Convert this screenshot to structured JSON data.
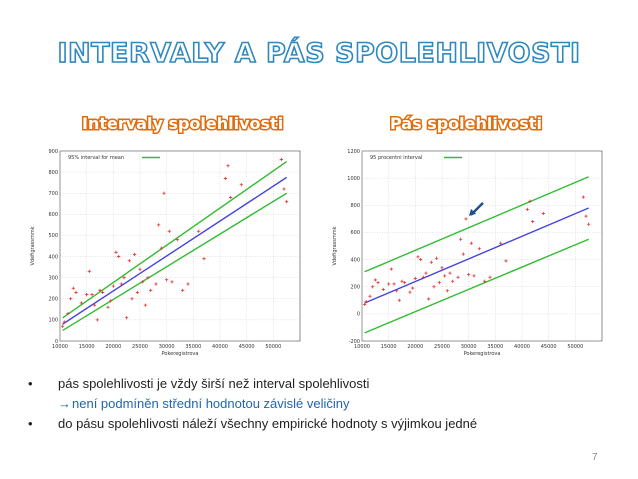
{
  "title": "INTERVALY A PÁS SPOLEHLIVOSTI",
  "subtitles": {
    "left": "Intervaly spolehlivosti",
    "right": "Pás spolehlivosti"
  },
  "bullets": {
    "b1": "pás spolehlivosti je vždy širší než interval spolehlivosti",
    "b1_arrow": "→",
    "b1_sub": "není podmíněn střední hodnotou závislé veličiny",
    "b2": "do pásu spolehlivosti náleží všechny empirické hodnoty s výjimkou jedné"
  },
  "bullet_symbol": "•",
  "page_number": "7",
  "colors": {
    "points": "#e23030",
    "fit": "#4444dd",
    "band": "#33bb33",
    "title": "#2f89c0",
    "subtitle": "#e36c0a"
  },
  "chart_data": [
    {
      "type": "scatter",
      "legend": "95% interval for mean",
      "legend_position": "top-left",
      "xlabel": "Pokeregistrova",
      "ylabel": "Vdefigrassmmk",
      "xlim": [
        10000,
        55000
      ],
      "ylim": [
        0,
        900
      ],
      "xticks": [
        10000,
        15000,
        20000,
        25000,
        30000,
        35000,
        40000,
        45000,
        50000
      ],
      "yticks": [
        0,
        100,
        200,
        300,
        400,
        500,
        600,
        700,
        800,
        900
      ],
      "grid": true,
      "fit": {
        "x": [
          10500,
          52500
        ],
        "y": [
          80,
          775
        ]
      },
      "band_upper": {
        "x": [
          10500,
          52500
        ],
        "y": [
          110,
          850
        ]
      },
      "band_lower": {
        "x": [
          10500,
          52500
        ],
        "y": [
          50,
          700
        ]
      },
      "points": [
        [
          10500,
          70
        ],
        [
          10800,
          90
        ],
        [
          11500,
          130
        ],
        [
          12000,
          200
        ],
        [
          12500,
          250
        ],
        [
          13000,
          230
        ],
        [
          14000,
          180
        ],
        [
          15000,
          220
        ],
        [
          15500,
          330
        ],
        [
          16000,
          220
        ],
        [
          16500,
          170
        ],
        [
          17000,
          100
        ],
        [
          17500,
          240
        ],
        [
          18000,
          230
        ],
        [
          19000,
          160
        ],
        [
          19500,
          190
        ],
        [
          20000,
          260
        ],
        [
          20500,
          420
        ],
        [
          21000,
          400
        ],
        [
          21500,
          270
        ],
        [
          22000,
          300
        ],
        [
          22500,
          110
        ],
        [
          23000,
          380
        ],
        [
          23500,
          200
        ],
        [
          24000,
          410
        ],
        [
          24500,
          230
        ],
        [
          25000,
          340
        ],
        [
          25500,
          280
        ],
        [
          26000,
          170
        ],
        [
          26500,
          300
        ],
        [
          27000,
          240
        ],
        [
          28000,
          270
        ],
        [
          28500,
          550
        ],
        [
          29000,
          440
        ],
        [
          29500,
          700
        ],
        [
          30000,
          290
        ],
        [
          30500,
          520
        ],
        [
          31000,
          280
        ],
        [
          32000,
          480
        ],
        [
          33000,
          240
        ],
        [
          34000,
          270
        ],
        [
          36000,
          520
        ],
        [
          37000,
          390
        ],
        [
          41000,
          770
        ],
        [
          41500,
          830
        ],
        [
          42000,
          680
        ],
        [
          44000,
          740
        ],
        [
          51500,
          860
        ],
        [
          52000,
          720
        ],
        [
          52500,
          660
        ]
      ]
    },
    {
      "type": "scatter",
      "legend": "95 procentni interval",
      "legend_position": "top-left",
      "xlabel": "Pokeregistrova",
      "ylabel": "Vdefigrassmmk",
      "xlim": [
        10000,
        55000
      ],
      "ylim": [
        -200,
        1200
      ],
      "xticks": [
        10000,
        15000,
        20000,
        25000,
        30000,
        35000,
        40000,
        45000,
        50000
      ],
      "yticks": [
        -200,
        0,
        200,
        400,
        600,
        800,
        1000,
        1200
      ],
      "grid": true,
      "fit": {
        "x": [
          10500,
          52500
        ],
        "y": [
          80,
          780
        ]
      },
      "band_upper": {
        "x": [
          10500,
          52500
        ],
        "y": [
          310,
          1010
        ]
      },
      "band_lower": {
        "x": [
          10500,
          52500
        ],
        "y": [
          -140,
          550
        ]
      },
      "points": [
        [
          10500,
          70
        ],
        [
          10800,
          90
        ],
        [
          11500,
          130
        ],
        [
          12000,
          200
        ],
        [
          12500,
          250
        ],
        [
          13000,
          230
        ],
        [
          14000,
          180
        ],
        [
          15000,
          220
        ],
        [
          15500,
          330
        ],
        [
          16000,
          220
        ],
        [
          16500,
          170
        ],
        [
          17000,
          100
        ],
        [
          17500,
          240
        ],
        [
          18000,
          230
        ],
        [
          19000,
          160
        ],
        [
          19500,
          190
        ],
        [
          20000,
          260
        ],
        [
          20500,
          420
        ],
        [
          21000,
          400
        ],
        [
          21500,
          270
        ],
        [
          22000,
          300
        ],
        [
          22500,
          110
        ],
        [
          23000,
          380
        ],
        [
          23500,
          200
        ],
        [
          24000,
          410
        ],
        [
          24500,
          230
        ],
        [
          25000,
          340
        ],
        [
          25500,
          280
        ],
        [
          26000,
          170
        ],
        [
          26500,
          300
        ],
        [
          27000,
          240
        ],
        [
          28000,
          270
        ],
        [
          28500,
          550
        ],
        [
          29000,
          440
        ],
        [
          29500,
          700
        ],
        [
          30000,
          290
        ],
        [
          30500,
          520
        ],
        [
          31000,
          280
        ],
        [
          32000,
          480
        ],
        [
          33000,
          240
        ],
        [
          34000,
          270
        ],
        [
          36000,
          520
        ],
        [
          37000,
          390
        ],
        [
          41000,
          770
        ],
        [
          41500,
          830
        ],
        [
          42000,
          680
        ],
        [
          44000,
          740
        ],
        [
          51500,
          860
        ],
        [
          52000,
          720
        ],
        [
          52500,
          660
        ]
      ],
      "annotation_arrow_target": [
        29500,
        700
      ]
    }
  ]
}
